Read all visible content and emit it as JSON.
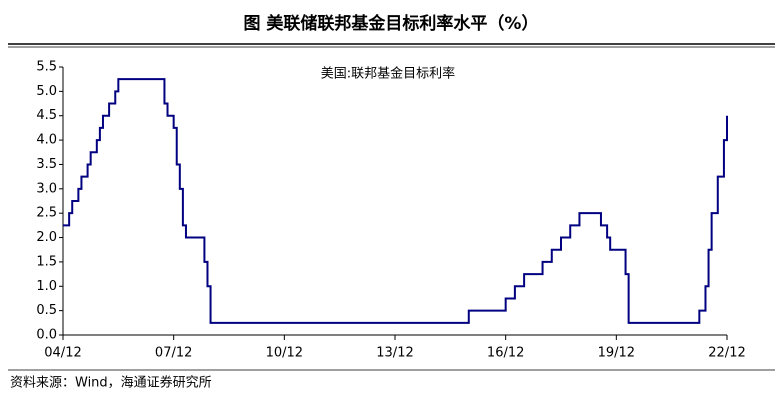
{
  "chart_data": {
    "type": "step",
    "title": "图  美联储联邦基金目标利率水平（%）",
    "source": "资料来源：Wind，海通证券研究所",
    "x": [
      "04/12",
      "05/02",
      "05/03",
      "05/05",
      "05/06",
      "05/08",
      "05/09",
      "05/11",
      "05/12",
      "06/01",
      "06/03",
      "06/05",
      "06/06",
      "07/09",
      "07/10",
      "07/12",
      "08/01",
      "08/02",
      "08/03",
      "08/04",
      "08/10",
      "08/11",
      "08/12",
      "15/12",
      "16/12",
      "17/03",
      "17/06",
      "17/12",
      "18/03",
      "18/06",
      "18/09",
      "18/12",
      "19/07",
      "19/09",
      "19/10",
      "20/03",
      "20/04",
      "22/03",
      "22/05",
      "22/06",
      "22/07",
      "22/09",
      "22/11",
      "22/12"
    ],
    "series": [
      {
        "name": "美国:联邦基金目标利率",
        "color": "#000080",
        "values": [
          2.25,
          2.5,
          2.75,
          3.0,
          3.25,
          3.5,
          3.75,
          4.0,
          4.25,
          4.5,
          4.75,
          5.0,
          5.25,
          4.75,
          4.5,
          4.25,
          3.5,
          3.0,
          2.25,
          2.0,
          1.5,
          1.0,
          0.25,
          0.5,
          0.75,
          1.0,
          1.25,
          1.5,
          1.75,
          2.0,
          2.25,
          2.5,
          2.25,
          2.0,
          1.75,
          1.25,
          0.25,
          0.5,
          1.0,
          1.75,
          2.5,
          3.25,
          4.0,
          4.5
        ]
      }
    ],
    "xlim": [
      "04/12",
      "22/12"
    ],
    "xticks": [
      "04/12",
      "07/12",
      "10/12",
      "13/12",
      "16/12",
      "19/12",
      "22/12"
    ],
    "ylim": [
      0,
      5.5
    ],
    "yticks": [
      {
        "value": 0,
        "label": "0.0"
      },
      {
        "value": 0.5,
        "label": "0.5"
      },
      {
        "value": 1,
        "label": "1.0"
      },
      {
        "value": 1.5,
        "label": "1.5"
      },
      {
        "value": 2,
        "label": "2.0"
      },
      {
        "value": 2.5,
        "label": "2.5"
      },
      {
        "value": 3,
        "label": "3.0"
      },
      {
        "value": 3.5,
        "label": "3.5"
      },
      {
        "value": 4,
        "label": "4.0"
      },
      {
        "value": 4.5,
        "label": "4.5"
      },
      {
        "value": 5,
        "label": "5.0"
      },
      {
        "value": 5.5,
        "label": "5.5"
      }
    ],
    "grid": false
  }
}
